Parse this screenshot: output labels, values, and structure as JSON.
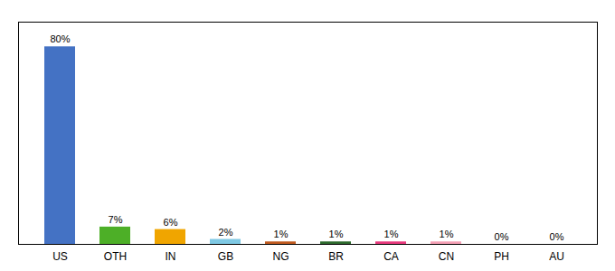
{
  "chart_data": {
    "type": "bar",
    "categories": [
      "US",
      "OTH",
      "IN",
      "GB",
      "NG",
      "BR",
      "CA",
      "CN",
      "PH",
      "AU"
    ],
    "values": [
      80,
      7,
      6,
      2,
      1,
      1,
      1,
      1,
      0,
      0
    ],
    "value_labels": [
      "80%",
      "7%",
      "6%",
      "2%",
      "1%",
      "1%",
      "1%",
      "1%",
      "0%",
      "0%"
    ],
    "colors": [
      "#4472c4",
      "#4daf27",
      "#f0a500",
      "#7ec8e3",
      "#c05a1f",
      "#2d6a2d",
      "#e8397d",
      "#f5a0b5",
      "#bbbbbb",
      "#bbbbbb"
    ],
    "ylim": [
      0,
      90
    ],
    "yticks": [],
    "tick_labels": "x",
    "data_labels": true,
    "grid": false
  }
}
